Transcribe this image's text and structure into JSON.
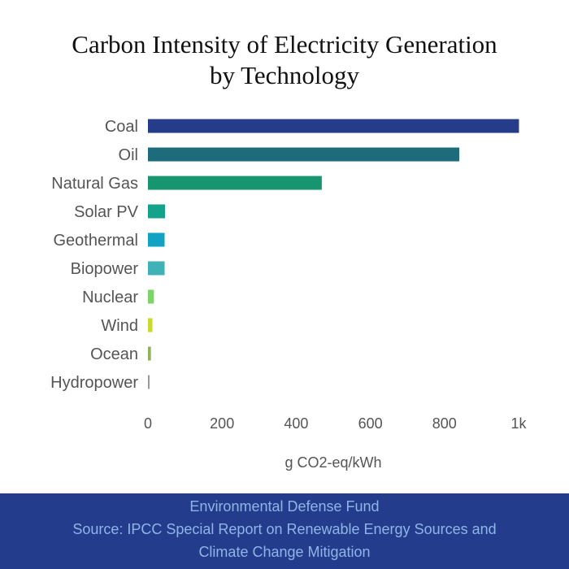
{
  "chart_data": {
    "type": "bar",
    "orientation": "horizontal",
    "title_lines": [
      "Carbon Intensity of Electricity Generation",
      "by Technology"
    ],
    "categories": [
      "Coal",
      "Oil",
      "Natural Gas",
      "Solar PV",
      "Geothermal",
      "Biopower",
      "Nuclear",
      "Wind",
      "Ocean",
      "Hydropower"
    ],
    "values": [
      1001,
      840,
      469,
      46,
      45,
      45,
      16,
      12,
      8,
      4
    ],
    "colors": [
      "#253c8a",
      "#1e6b7b",
      "#16956e",
      "#13a38c",
      "#12a3c3",
      "#3fb2b8",
      "#7fd36b",
      "#c9d92e",
      "#8fb35a",
      "#9a9a9a"
    ],
    "xlim": [
      0,
      1000
    ],
    "xticks": [
      0,
      200,
      400,
      600,
      800,
      1000
    ],
    "xtick_labels": [
      "0",
      "200",
      "400",
      "600",
      "800",
      "1k"
    ],
    "xlabel": "g CO2-eq/kWh",
    "ylabel": "",
    "grid": false
  },
  "footer": {
    "line1": "Environmental Defense Fund",
    "line2": "Source: IPCC Special Report on Renewable Energy Sources and",
    "line3": "Climate Change Mitigation",
    "background": "#233d8c",
    "text_color": "#8fb4e8"
  }
}
